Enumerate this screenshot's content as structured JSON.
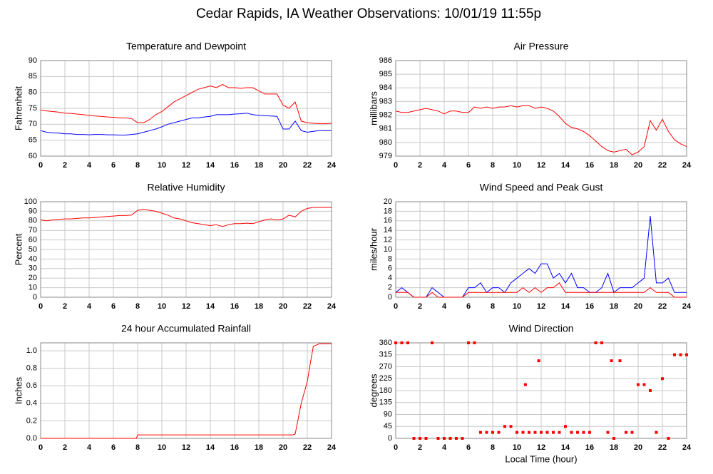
{
  "title": "Cedar Rapids, IA Weather Observations: 10/01/19 11:55p",
  "chart_data": [
    {
      "type": "line",
      "title": "Temperature and Dewpoint",
      "ylabel": "Fahrenheit",
      "x": [
        0,
        0.5,
        1,
        1.5,
        2,
        2.5,
        3,
        3.5,
        4,
        4.5,
        5,
        5.5,
        6,
        6.5,
        7,
        7.5,
        8,
        8.5,
        9,
        9.5,
        10,
        10.5,
        11,
        11.5,
        12,
        12.5,
        13,
        13.5,
        14,
        14.5,
        15,
        15.5,
        16,
        16.5,
        17,
        17.5,
        18,
        18.5,
        19,
        19.5,
        20,
        20.5,
        21,
        21.5,
        22,
        22.5,
        23,
        23.5,
        24
      ],
      "series": [
        {
          "color": "#ff0000",
          "values": [
            74.5,
            74.2,
            74,
            73.8,
            73.5,
            73.4,
            73.2,
            73,
            72.8,
            72.6,
            72.5,
            72.3,
            72.2,
            72,
            72,
            71.8,
            70.5,
            70.5,
            71.5,
            73,
            74,
            75.5,
            77,
            78,
            79,
            80,
            81,
            81.5,
            82,
            81.5,
            82.5,
            81.5,
            81.5,
            81.3,
            81.5,
            81.5,
            80.5,
            79.5,
            79.5,
            79.5,
            76,
            75,
            77,
            71,
            70.5,
            70.3,
            70.2,
            70.2,
            70.3
          ]
        },
        {
          "color": "#0000ff",
          "values": [
            68,
            67.5,
            67.3,
            67.2,
            67,
            67,
            66.8,
            66.8,
            66.7,
            66.8,
            66.8,
            66.7,
            66.7,
            66.6,
            66.6,
            66.8,
            67,
            67.5,
            68,
            68.5,
            69.2,
            70,
            70.5,
            71,
            71.5,
            72,
            72,
            72.3,
            72.5,
            73,
            73,
            73,
            73.2,
            73.3,
            73.5,
            73,
            72.8,
            72.7,
            72.6,
            72.5,
            68.5,
            68.5,
            71,
            68,
            67.5,
            67.8,
            68,
            68,
            68
          ]
        }
      ],
      "xlim": [
        0,
        24
      ],
      "xticks": [
        0,
        2,
        4,
        6,
        8,
        10,
        12,
        14,
        16,
        18,
        20,
        22,
        24
      ],
      "ylim": [
        60,
        90
      ],
      "yticks": [
        60,
        65,
        70,
        75,
        80,
        85,
        90
      ],
      "grid": true
    },
    {
      "type": "line",
      "title": "Air Pressure",
      "ylabel": "millibars",
      "x": [
        0,
        0.5,
        1,
        1.5,
        2,
        2.5,
        3,
        3.5,
        4,
        4.5,
        5,
        5.5,
        6,
        6.5,
        7,
        7.5,
        8,
        8.5,
        9,
        9.5,
        10,
        10.5,
        11,
        11.5,
        12,
        12.5,
        13,
        13.5,
        14,
        14.5,
        15,
        15.5,
        16,
        16.5,
        17,
        17.5,
        18,
        18.5,
        19,
        19.5,
        20,
        20.5,
        21,
        21.5,
        22,
        22.5,
        23,
        23.5,
        24
      ],
      "series": [
        {
          "color": "#ff0000",
          "values": [
            982.3,
            982.2,
            982.2,
            982.3,
            982.4,
            982.5,
            982.4,
            982.3,
            982.1,
            982.3,
            982.3,
            982.2,
            982.2,
            982.6,
            982.5,
            982.6,
            982.5,
            982.6,
            982.6,
            982.7,
            982.6,
            982.7,
            982.7,
            982.5,
            982.6,
            982.5,
            982.3,
            981.9,
            981.4,
            981.1,
            981,
            980.8,
            980.5,
            980.1,
            979.7,
            979.4,
            979.3,
            979.4,
            979.5,
            979.1,
            979.3,
            979.7,
            981.6,
            980.9,
            981.7,
            980.8,
            980.2,
            979.9,
            979.7
          ]
        }
      ],
      "xlim": [
        0,
        24
      ],
      "xticks": [
        0,
        2,
        4,
        6,
        8,
        10,
        12,
        14,
        16,
        18,
        20,
        22,
        24
      ],
      "ylim": [
        979,
        986
      ],
      "yticks": [
        979,
        980,
        981,
        982,
        983,
        984,
        985,
        986
      ],
      "grid": true
    },
    {
      "type": "line",
      "title": "Relative Humidity",
      "ylabel": "Percent",
      "x": [
        0,
        0.5,
        1,
        1.5,
        2,
        2.5,
        3,
        3.5,
        4,
        4.5,
        5,
        5.5,
        6,
        6.5,
        7,
        7.5,
        8,
        8.5,
        9,
        9.5,
        10,
        10.5,
        11,
        11.5,
        12,
        12.5,
        13,
        13.5,
        14,
        14.5,
        15,
        15.5,
        16,
        16.5,
        17,
        17.5,
        18,
        18.5,
        19,
        19.5,
        20,
        20.5,
        21,
        21.5,
        22,
        22.5,
        23,
        23.5,
        24
      ],
      "series": [
        {
          "color": "#ff0000",
          "values": [
            81,
            80,
            81,
            81.5,
            82,
            82,
            82.5,
            83,
            83,
            83.5,
            84,
            84.5,
            85,
            85.5,
            85.5,
            86,
            91,
            92,
            91,
            90,
            88,
            86,
            83,
            82,
            80,
            78,
            77,
            76,
            75,
            76,
            74,
            76,
            77,
            77,
            77.5,
            77,
            79,
            81,
            82,
            81,
            82,
            86,
            84,
            90,
            93,
            94,
            94,
            94,
            94
          ]
        }
      ],
      "xlim": [
        0,
        24
      ],
      "xticks": [
        0,
        2,
        4,
        6,
        8,
        10,
        12,
        14,
        16,
        18,
        20,
        22,
        24
      ],
      "ylim": [
        0,
        100
      ],
      "yticks": [
        0,
        10,
        20,
        30,
        40,
        50,
        60,
        70,
        80,
        90,
        100
      ],
      "grid": true
    },
    {
      "type": "line",
      "title": "Wind Speed and Peak Gust",
      "ylabel": "miles/hour",
      "x": [
        0,
        0.5,
        1,
        1.5,
        2,
        2.5,
        3,
        3.5,
        4,
        4.5,
        5,
        5.5,
        6,
        6.5,
        7,
        7.5,
        8,
        8.5,
        9,
        9.5,
        10,
        10.5,
        11,
        11.5,
        12,
        12.5,
        13,
        13.5,
        14,
        14.5,
        15,
        15.5,
        16,
        16.5,
        17,
        17.5,
        18,
        18.5,
        19,
        19.5,
        20,
        20.5,
        21,
        21.5,
        22,
        22.5,
        23,
        23.5,
        24
      ],
      "series": [
        {
          "color": "#0000ff",
          "values": [
            1,
            2,
            1,
            0,
            0,
            0,
            2,
            1,
            0,
            0,
            0,
            0,
            2,
            2,
            3,
            1,
            2,
            2,
            1,
            3,
            4,
            5,
            6,
            5,
            7,
            7,
            4,
            5,
            3,
            5,
            2,
            2,
            1,
            1,
            2,
            5,
            1,
            2,
            2,
            2,
            3,
            4,
            17,
            3,
            3,
            4,
            1,
            1,
            1
          ]
        },
        {
          "color": "#ff0000",
          "values": [
            1,
            1,
            1,
            0,
            0,
            0,
            1,
            0,
            0,
            0,
            0,
            0,
            1,
            1,
            1,
            1,
            1,
            1,
            1,
            1,
            1,
            2,
            1,
            2,
            1,
            2,
            2,
            3,
            1,
            1,
            1,
            1,
            1,
            1,
            1,
            1,
            1,
            1,
            1,
            1,
            1,
            1,
            2,
            1,
            1,
            1,
            0,
            0,
            0
          ]
        }
      ],
      "xlim": [
        0,
        24
      ],
      "xticks": [
        0,
        2,
        4,
        6,
        8,
        10,
        12,
        14,
        16,
        18,
        20,
        22,
        24
      ],
      "ylim": [
        0,
        20
      ],
      "yticks": [
        0,
        2,
        4,
        6,
        8,
        10,
        12,
        14,
        16,
        18,
        20
      ],
      "grid": true
    },
    {
      "type": "line",
      "title": "24 hour Accumulated Rainfall",
      "ylabel": "Inches",
      "x": [
        0,
        7.9,
        8,
        20.8,
        21,
        21.5,
        22,
        22.3,
        22.5,
        23,
        24
      ],
      "series": [
        {
          "color": "#ff0000",
          "values": [
            0,
            0,
            0.04,
            0.04,
            0.05,
            0.4,
            0.65,
            0.9,
            1.05,
            1.08,
            1.08
          ]
        }
      ],
      "xlim": [
        0,
        24
      ],
      "xticks": [
        0,
        2,
        4,
        6,
        8,
        10,
        12,
        14,
        16,
        18,
        20,
        22,
        24
      ],
      "ylim": [
        0,
        1.09
      ],
      "yticks": [
        {
          "value": 0,
          "label": "0.0"
        },
        0.2,
        0.4,
        0.6,
        0.8,
        {
          "value": 1,
          "label": "1.0"
        }
      ],
      "grid": true
    },
    {
      "type": "scatter",
      "title": "Wind Direction",
      "ylabel": "degrees",
      "xlabel": "Local Time (hour)",
      "x": [
        0,
        0.5,
        1,
        1.5,
        2,
        2.5,
        3,
        3.5,
        4,
        4.5,
        5,
        5.5,
        6,
        6.5,
        7,
        7.5,
        8,
        8.5,
        9,
        9.5,
        10,
        10.5,
        10.7,
        11,
        11.5,
        11.8,
        12,
        12.5,
        13,
        13.5,
        14,
        14.5,
        15,
        15.5,
        16,
        16.5,
        17,
        17.5,
        17.8,
        18,
        18.5,
        19,
        19.5,
        20,
        20.5,
        21,
        21.5,
        22,
        22.5,
        23,
        23.5,
        24
      ],
      "series": [
        {
          "color": "#ff0000",
          "values": [
            360,
            360,
            360,
            0,
            0,
            0,
            360,
            0,
            0,
            0,
            0,
            0,
            360,
            360,
            22.5,
            22.5,
            22.5,
            22.5,
            45,
            45,
            22.5,
            22.5,
            202.5,
            22.5,
            22.5,
            292.5,
            22.5,
            22.5,
            22.5,
            22.5,
            45,
            22.5,
            22.5,
            22.5,
            22.5,
            360,
            360,
            22.5,
            292.5,
            0,
            292.5,
            22.5,
            22.5,
            202.5,
            202.5,
            180,
            22.5,
            225,
            0,
            315,
            315,
            315
          ]
        }
      ],
      "xlim": [
        0,
        24
      ],
      "xticks": [
        0,
        2,
        4,
        6,
        8,
        10,
        12,
        14,
        16,
        18,
        20,
        22,
        24
      ],
      "ylim": [
        0,
        360
      ],
      "yticks": [
        0,
        45,
        90,
        135,
        180,
        225,
        270,
        315,
        360
      ],
      "grid": true
    }
  ]
}
